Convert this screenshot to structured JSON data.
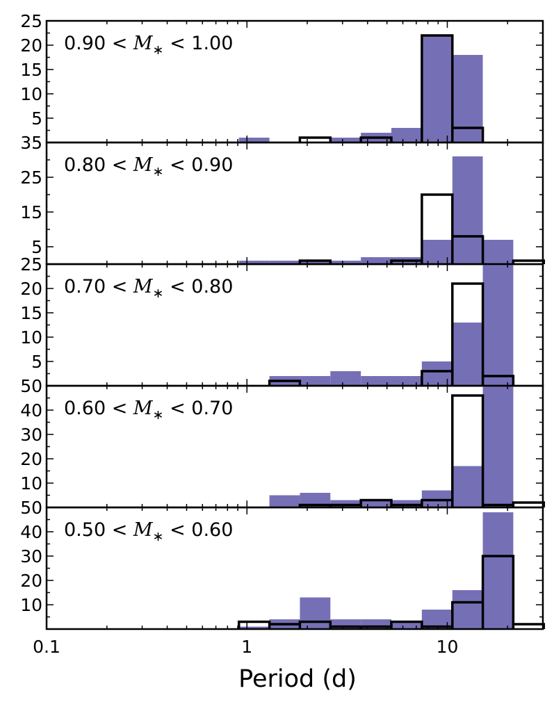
{
  "colors": {
    "filled": "#7570b6",
    "outline": "#000000",
    "background": "#ffffff"
  },
  "chart_data": {
    "type": "bar",
    "xlabel": "Period (d)",
    "xscale": "log",
    "xlim": [
      0.1,
      30
    ],
    "xticks": [
      {
        "value": 0.1,
        "label": "0.1"
      },
      {
        "value": 1,
        "label": "1"
      },
      {
        "value": 10,
        "label": "10"
      }
    ],
    "bin_edges": [
      0.912,
      1.295,
      1.838,
      2.609,
      3.704,
      5.258,
      7.464,
      10.6,
      15.04,
      21.35,
      30.31
    ],
    "panels": [
      {
        "label_prefix": "0.90 < ",
        "label_var": "M",
        "label_sub": "∗",
        "label_suffix": " < 1.00",
        "ylim": [
          0,
          25
        ],
        "yticks": [
          {
            "value": 5,
            "label": "5"
          },
          {
            "value": 10,
            "label": "10"
          },
          {
            "value": 15,
            "label": "15"
          },
          {
            "value": 20,
            "label": "20"
          },
          {
            "value": 25,
            "label": "25"
          }
        ],
        "filled": [
          1,
          0,
          0,
          1,
          2,
          3,
          22,
          18,
          0,
          0
        ],
        "outline": [
          0,
          0,
          1,
          0,
          1,
          0,
          22,
          3,
          0,
          0
        ]
      },
      {
        "label_prefix": "0.80 < ",
        "label_var": "M",
        "label_sub": "∗",
        "label_suffix": " < 0.90",
        "ylim": [
          0,
          35
        ],
        "yticks": [
          {
            "value": 5,
            "label": "5"
          },
          {
            "value": 15,
            "label": "15"
          },
          {
            "value": 25,
            "label": "25"
          },
          {
            "value": 35,
            "label": "35"
          }
        ],
        "filled": [
          1,
          1,
          1,
          1,
          2,
          2,
          7,
          31,
          7,
          0
        ],
        "outline": [
          0,
          0,
          1,
          0,
          0,
          1,
          20,
          8,
          0,
          1
        ]
      },
      {
        "label_prefix": "0.70 < ",
        "label_var": "M",
        "label_sub": "∗",
        "label_suffix": " < 0.80",
        "ylim": [
          0,
          25
        ],
        "yticks": [
          {
            "value": 5,
            "label": "5"
          },
          {
            "value": 10,
            "label": "10"
          },
          {
            "value": 15,
            "label": "15"
          },
          {
            "value": 20,
            "label": "20"
          },
          {
            "value": 25,
            "label": "25"
          }
        ],
        "filled": [
          0,
          2,
          2,
          3,
          2,
          2,
          5,
          13,
          25,
          0
        ],
        "outline": [
          0,
          1,
          0,
          0,
          0,
          0,
          3,
          21,
          2,
          0
        ]
      },
      {
        "label_prefix": "0.60 < ",
        "label_var": "M",
        "label_sub": "∗",
        "label_suffix": " < 0.70",
        "ylim": [
          0,
          50
        ],
        "yticks": [
          {
            "value": 10,
            "label": "10"
          },
          {
            "value": 20,
            "label": "20"
          },
          {
            "value": 30,
            "label": "30"
          },
          {
            "value": 40,
            "label": "40"
          },
          {
            "value": 50,
            "label": "50"
          }
        ],
        "filled": [
          0,
          5,
          6,
          3,
          3,
          3,
          7,
          17,
          50,
          0
        ],
        "outline": [
          0,
          0,
          1,
          1,
          3,
          1,
          3,
          46,
          1,
          2
        ]
      },
      {
        "label_prefix": "0.50 < ",
        "label_var": "M",
        "label_sub": "∗",
        "label_suffix": " < 0.60",
        "ylim": [
          0,
          50
        ],
        "yticks": [
          {
            "value": 10,
            "label": "10"
          },
          {
            "value": 20,
            "label": "20"
          },
          {
            "value": 30,
            "label": "30"
          },
          {
            "value": 40,
            "label": "40"
          },
          {
            "value": 50,
            "label": "50"
          }
        ],
        "filled": [
          1,
          4,
          13,
          4,
          4,
          3,
          8,
          16,
          48,
          0
        ],
        "outline": [
          3,
          2,
          3,
          1,
          1,
          3,
          1,
          11,
          30,
          2
        ]
      }
    ]
  }
}
